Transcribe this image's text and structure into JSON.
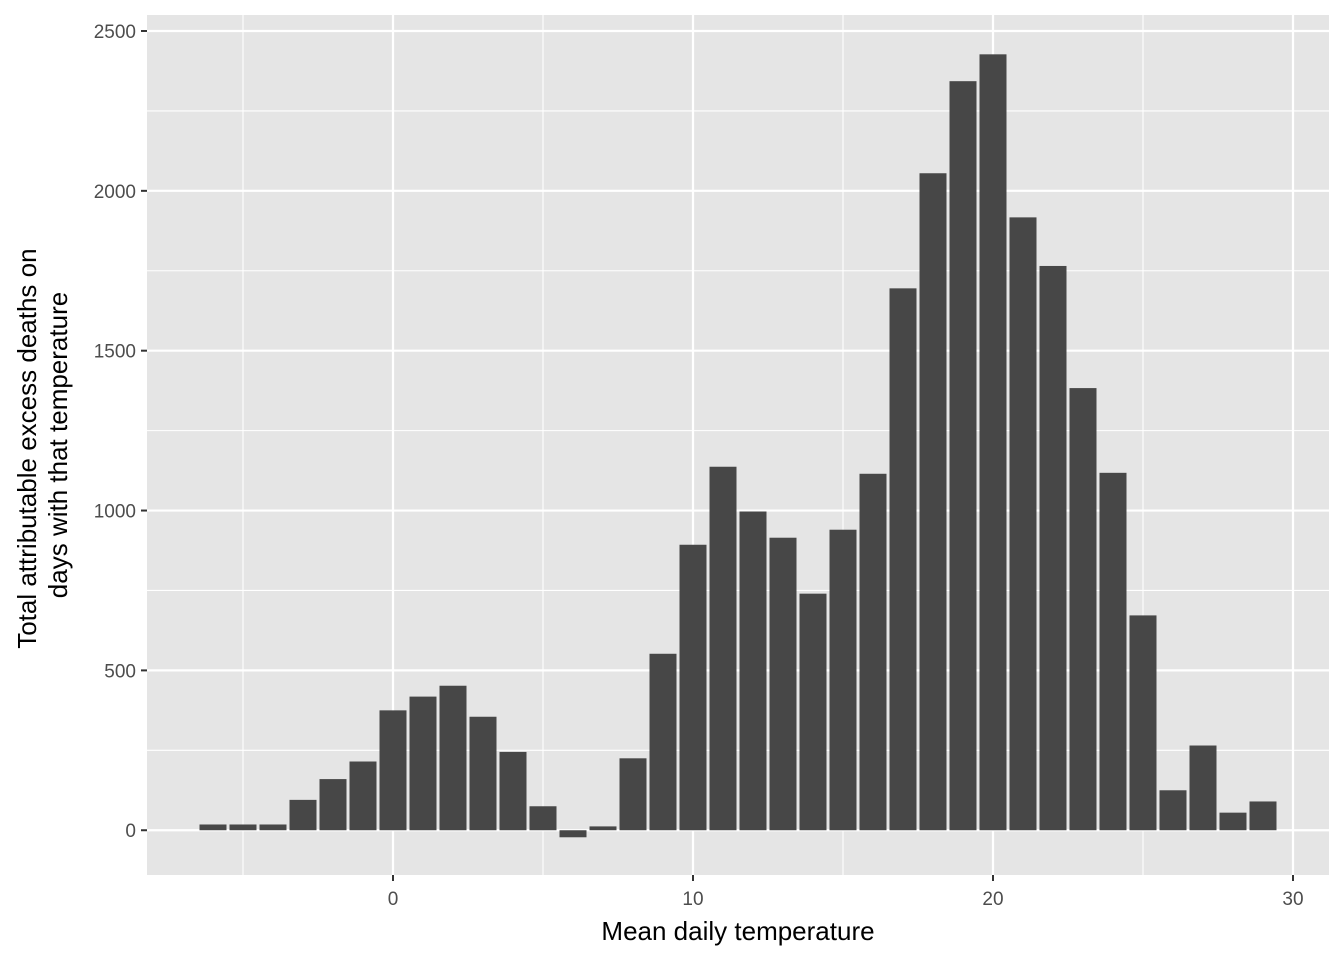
{
  "chart_data": {
    "type": "bar",
    "title": "",
    "xlabel": "Mean daily temperature",
    "ylabel_lines": [
      "Total attributable excess deaths on",
      "days with that temperature"
    ],
    "x": [
      -6,
      -5,
      -4,
      -3,
      -2,
      -1,
      0,
      1,
      2,
      3,
      4,
      5,
      6,
      7,
      8,
      9,
      10,
      11,
      12,
      13,
      14,
      15,
      16,
      17,
      18,
      19,
      20,
      21,
      22,
      23,
      24,
      25,
      26,
      27,
      28,
      29
    ],
    "values": [
      18,
      18,
      18,
      95,
      160,
      215,
      375,
      418,
      452,
      355,
      245,
      75,
      -22,
      12,
      225,
      552,
      893,
      1137,
      997,
      915,
      740,
      940,
      1115,
      1695,
      2055,
      2343,
      2427,
      1917,
      1765,
      1383,
      1118,
      672,
      125,
      265,
      55,
      90
    ],
    "xlim": [
      -8.2,
      31.2
    ],
    "ylim": [
      -140,
      2550
    ],
    "x_ticks": [
      0,
      10,
      20,
      30
    ],
    "x_tick_labels": [
      "0",
      "10",
      "20",
      "30"
    ],
    "y_ticks": [
      0,
      500,
      1000,
      1500,
      2000,
      2500
    ],
    "y_tick_labels": [
      "0",
      "500",
      "1000",
      "1500",
      "2000",
      "2500"
    ],
    "grid": true,
    "legend": "none",
    "colors": {
      "panel": "#e5e5e5",
      "grid": "#ffffff",
      "bar": "#474747",
      "text": "#4d4d4d",
      "title": "#000000"
    }
  }
}
